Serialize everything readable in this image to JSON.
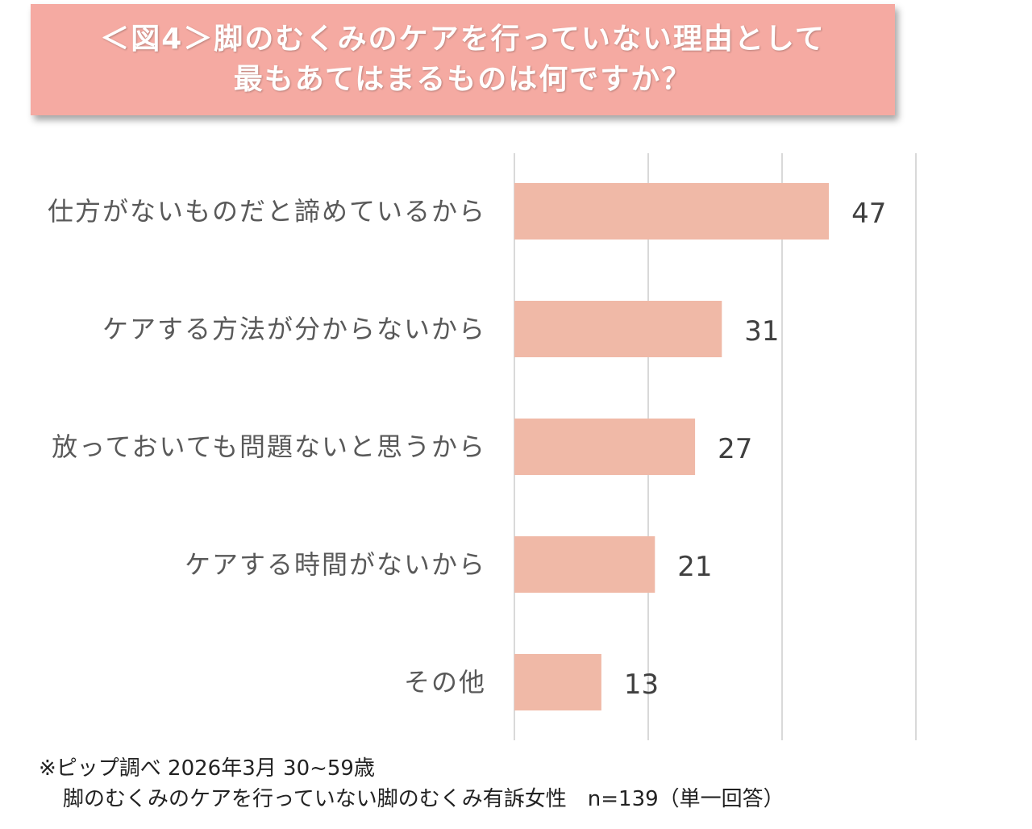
{
  "header": {
    "title_line1": "＜図4＞脚のむくみのケアを行っていない理由として",
    "title_line2": "最もあてはまるものは何ですか？",
    "color": "#f5aaa2"
  },
  "chart_data": {
    "type": "bar",
    "orientation": "horizontal",
    "categories": [
      "仕方がないものだと諦めているから",
      "ケアする方法が分からないから",
      "放っておいても問題ないと思うから",
      "ケアする時間がないから",
      "その他"
    ],
    "values": [
      47,
      31,
      27,
      21,
      13
    ],
    "xlim": [
      0,
      60
    ],
    "grid": true,
    "gridline_step": 20,
    "bar_color": "#f0b9a7",
    "data_labels": true
  },
  "footnote": {
    "line1": "※ピップ調べ 2026年3月 30~59歳",
    "line2": "脚のむくみのケアを行っていない脚のむくみ有訴女性　n=139（単一回答）"
  }
}
